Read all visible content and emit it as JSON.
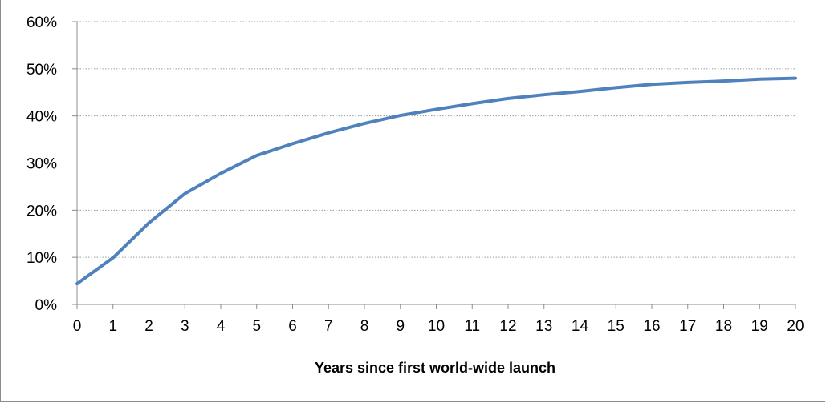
{
  "chart_data": {
    "type": "line",
    "title": "",
    "xlabel": "Years since first world-wide launch",
    "ylabel": "",
    "x": [
      0,
      1,
      2,
      3,
      4,
      5,
      6,
      7,
      8,
      9,
      10,
      11,
      12,
      13,
      14,
      15,
      16,
      17,
      18,
      19,
      20
    ],
    "x_tick_labels": [
      "0",
      "1",
      "2",
      "3",
      "4",
      "5",
      "6",
      "7",
      "8",
      "9",
      "10",
      "11",
      "12",
      "13",
      "14",
      "15",
      "16",
      "17",
      "18",
      "19",
      "20"
    ],
    "series": [
      {
        "name": "",
        "color": "#4f81bd",
        "values": [
          0.044,
          0.099,
          0.173,
          0.235,
          0.278,
          0.316,
          0.341,
          0.364,
          0.384,
          0.401,
          0.414,
          0.426,
          0.437,
          0.445,
          0.452,
          0.46,
          0.467,
          0.471,
          0.474,
          0.478,
          0.48
        ]
      }
    ],
    "ylim": [
      0,
      0.6
    ],
    "xlim": [
      0,
      20
    ],
    "y_ticks": [
      0,
      0.1,
      0.2,
      0.3,
      0.4,
      0.5,
      0.6
    ],
    "y_tick_labels": [
      "0%",
      "10%",
      "20%",
      "30%",
      "40%",
      "50%",
      "60%"
    ],
    "grid": "horizontal-dotted",
    "legend": "none",
    "colors": {
      "line": "#4f81bd",
      "grid": "#9a9a9a",
      "axis": "#8c8c8c",
      "text": "#000000"
    }
  }
}
